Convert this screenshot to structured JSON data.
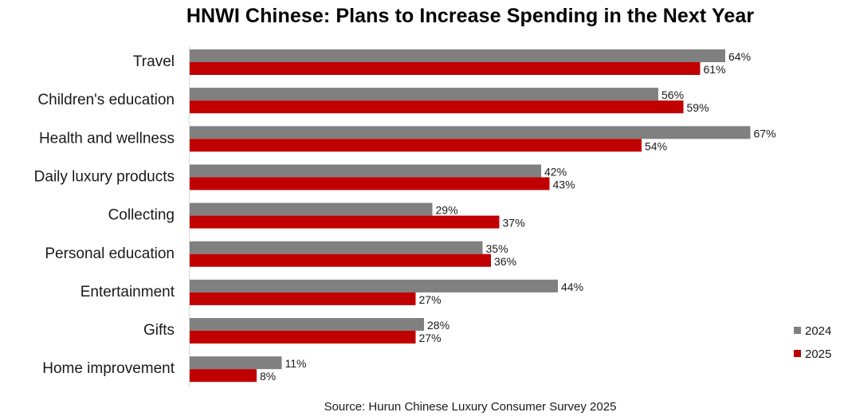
{
  "chart_data": {
    "type": "bar",
    "orientation": "horizontal",
    "title": "HNWI Chinese: Plans to Increase Spending in the Next Year",
    "source": "Source: Hurun Chinese Luxury Consumer Survey 2025",
    "categories": [
      "Travel",
      "Children's education",
      "Health and wellness",
      "Daily luxury products",
      "Collecting",
      "Personal education",
      "Entertainment",
      "Gifts",
      "Home improvement"
    ],
    "series": [
      {
        "name": "2024",
        "color": "#808080",
        "values": [
          64,
          56,
          67,
          42,
          29,
          35,
          44,
          28,
          11
        ]
      },
      {
        "name": "2025",
        "color": "#c00000",
        "values": [
          61,
          59,
          54,
          43,
          37,
          36,
          27,
          27,
          8
        ]
      }
    ],
    "value_suffix": "%",
    "xlim": [
      0,
      100
    ],
    "legend_position": "bottom-right",
    "grid": false
  }
}
